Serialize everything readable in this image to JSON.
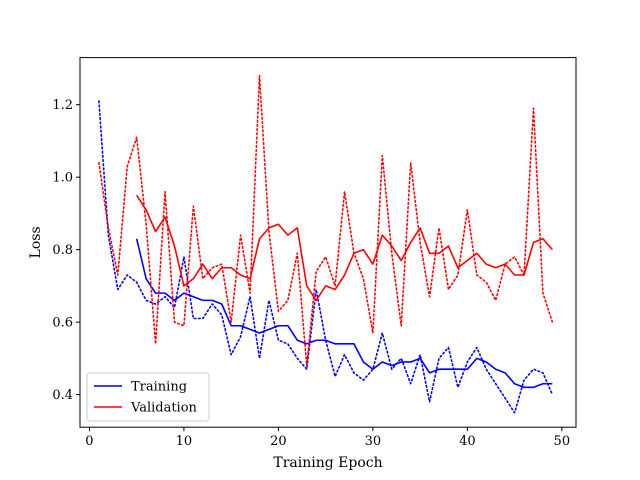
{
  "chart_data": {
    "type": "line",
    "xlabel": "Training Epoch",
    "ylabel": "Loss",
    "xlim": [
      -1,
      51.5
    ],
    "ylim": [
      0.31,
      1.33
    ],
    "xticks": [
      0,
      10,
      20,
      30,
      40,
      50
    ],
    "yticks": [
      0.4,
      0.6,
      0.8,
      1.0,
      1.2
    ],
    "xtick_labels": [
      "0",
      "10",
      "20",
      "30",
      "40",
      "50"
    ],
    "ytick_labels": [
      "0.4",
      "0.6",
      "0.8",
      "1.0",
      "1.2"
    ],
    "grid": false,
    "legend_position": "lower-left",
    "legend": [
      "Training",
      "Validation"
    ],
    "colors": {
      "training": "#0000ff",
      "validation": "#ff0000"
    },
    "series": [
      {
        "name": "Training",
        "style": "dotted",
        "color": "#0000ff",
        "x": [
          1,
          2,
          3,
          4,
          5,
          6,
          7,
          8,
          9,
          10,
          11,
          12,
          13,
          14,
          15,
          16,
          17,
          18,
          19,
          20,
          21,
          22,
          23,
          24,
          25,
          26,
          27,
          28,
          29,
          30,
          31,
          32,
          33,
          34,
          35,
          36,
          37,
          38,
          39,
          40,
          41,
          42,
          43,
          44,
          45,
          46,
          47,
          48,
          49
        ],
        "y": [
          1.21,
          0.84,
          0.69,
          0.73,
          0.71,
          0.66,
          0.65,
          0.67,
          0.64,
          0.78,
          0.61,
          0.61,
          0.65,
          0.62,
          0.51,
          0.56,
          0.67,
          0.5,
          0.66,
          0.55,
          0.54,
          0.5,
          0.47,
          0.69,
          0.55,
          0.45,
          0.51,
          0.46,
          0.44,
          0.47,
          0.57,
          0.47,
          0.5,
          0.43,
          0.51,
          0.38,
          0.5,
          0.53,
          0.42,
          0.49,
          0.53,
          0.47,
          0.43,
          0.39,
          0.35,
          0.44,
          0.47,
          0.46,
          0.4
        ]
      },
      {
        "name": "Training",
        "style": "solid",
        "color": "#0000ff",
        "x": [
          5,
          6,
          7,
          8,
          9,
          10,
          11,
          12,
          13,
          14,
          15,
          16,
          17,
          18,
          19,
          20,
          21,
          22,
          23,
          24,
          25,
          26,
          27,
          28,
          29,
          30,
          31,
          32,
          33,
          34,
          35,
          36,
          37,
          38,
          39,
          40,
          41,
          42,
          43,
          44,
          45,
          46,
          47,
          48,
          49
        ],
        "y": [
          0.83,
          0.72,
          0.68,
          0.68,
          0.66,
          0.68,
          0.67,
          0.66,
          0.66,
          0.65,
          0.59,
          0.59,
          0.58,
          0.57,
          0.58,
          0.59,
          0.59,
          0.55,
          0.54,
          0.55,
          0.55,
          0.54,
          0.54,
          0.54,
          0.49,
          0.47,
          0.49,
          0.48,
          0.49,
          0.49,
          0.5,
          0.46,
          0.47,
          0.47,
          0.47,
          0.47,
          0.5,
          0.49,
          0.47,
          0.46,
          0.43,
          0.42,
          0.42,
          0.43,
          0.43
        ]
      },
      {
        "name": "Validation",
        "style": "dotted",
        "color": "#ff0000",
        "x": [
          1,
          2,
          3,
          4,
          5,
          6,
          7,
          8,
          9,
          10,
          11,
          12,
          13,
          14,
          15,
          16,
          17,
          18,
          19,
          20,
          21,
          22,
          23,
          24,
          25,
          26,
          27,
          28,
          29,
          30,
          31,
          32,
          33,
          34,
          35,
          36,
          37,
          38,
          39,
          40,
          41,
          42,
          43,
          44,
          45,
          46,
          47,
          48,
          49
        ],
        "y": [
          1.04,
          0.86,
          0.73,
          1.03,
          1.11,
          0.87,
          0.54,
          0.96,
          0.6,
          0.59,
          0.92,
          0.72,
          0.75,
          0.76,
          0.6,
          0.84,
          0.68,
          1.28,
          0.85,
          0.63,
          0.66,
          0.79,
          0.48,
          0.74,
          0.78,
          0.7,
          0.96,
          0.79,
          0.72,
          0.57,
          1.06,
          0.79,
          0.59,
          1.04,
          0.82,
          0.67,
          0.86,
          0.69,
          0.73,
          0.91,
          0.73,
          0.71,
          0.66,
          0.76,
          0.78,
          0.73,
          1.19,
          0.68,
          0.6
        ]
      },
      {
        "name": "Validation",
        "style": "solid",
        "color": "#ff0000",
        "x": [
          5,
          6,
          7,
          8,
          9,
          10,
          11,
          12,
          13,
          14,
          15,
          16,
          17,
          18,
          19,
          20,
          21,
          22,
          23,
          24,
          25,
          26,
          27,
          28,
          29,
          30,
          31,
          32,
          33,
          34,
          35,
          36,
          37,
          38,
          39,
          40,
          41,
          42,
          43,
          44,
          45,
          46,
          47,
          48,
          49
        ],
        "y": [
          0.95,
          0.91,
          0.85,
          0.89,
          0.81,
          0.7,
          0.72,
          0.76,
          0.72,
          0.75,
          0.75,
          0.73,
          0.72,
          0.83,
          0.86,
          0.87,
          0.84,
          0.86,
          0.7,
          0.66,
          0.7,
          0.69,
          0.73,
          0.79,
          0.8,
          0.76,
          0.84,
          0.81,
          0.77,
          0.82,
          0.86,
          0.79,
          0.79,
          0.81,
          0.75,
          0.77,
          0.79,
          0.76,
          0.75,
          0.76,
          0.73,
          0.73,
          0.82,
          0.83,
          0.8
        ]
      }
    ]
  }
}
